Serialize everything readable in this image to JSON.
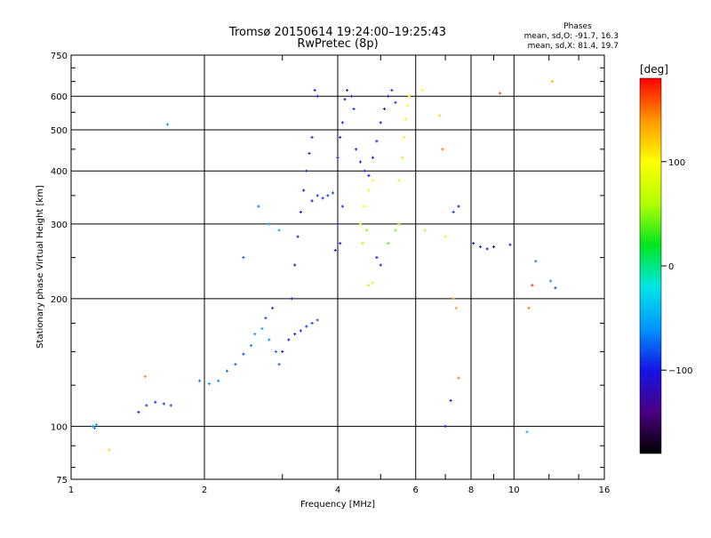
{
  "title_line1": "Tromsø 20150614 19:24:00–19:25:43",
  "title_line2": "RwPretec (8p)",
  "stats": {
    "heading": "Phases",
    "line_o": "mean, sd,O: -91.7, 16.3",
    "line_x": "mean, sd,X: 81.4, 19.7"
  },
  "colorbar": {
    "label": "[deg]",
    "ticks": [
      {
        "value": 100,
        "label": "100"
      },
      {
        "value": 0,
        "label": "0"
      },
      {
        "value": -100,
        "label": "−100"
      }
    ],
    "range": [
      -180,
      180
    ],
    "stops": [
      "#000000",
      "#4b0082",
      "#1414e6",
      "#0096ff",
      "#00e6e6",
      "#00e61e",
      "#b4ff00",
      "#ffff00",
      "#ff9600",
      "#ff0000"
    ]
  },
  "chart_data": {
    "type": "scatter",
    "title": "Tromsø 20150614 19:24:00–19:25:43",
    "subtitle": "RwPretec (8p)",
    "xlabel": "Frequency [MHz]",
    "ylabel": "Stationary phase Virtual Height [km]",
    "x_scale": "log",
    "y_scale": "log",
    "xlim": [
      1,
      16
    ],
    "ylim": [
      75,
      750
    ],
    "x_ticks": [
      {
        "value": 1,
        "label": "1"
      },
      {
        "value": 2,
        "label": "2"
      },
      {
        "value": 4,
        "label": "4"
      },
      {
        "value": 6,
        "label": "6"
      },
      {
        "value": 8,
        "label": "8"
      },
      {
        "value": 10,
        "label": "10"
      },
      {
        "value": 16,
        "label": "16"
      }
    ],
    "y_ticks": [
      {
        "value": 75,
        "label": "75"
      },
      {
        "value": 100,
        "label": "100"
      },
      {
        "value": 200,
        "label": "200"
      },
      {
        "value": 300,
        "label": "300"
      },
      {
        "value": 400,
        "label": "400"
      },
      {
        "value": 500,
        "label": "500"
      },
      {
        "value": 600,
        "label": "600"
      },
      {
        "value": 750,
        "label": "750"
      }
    ],
    "grid": true,
    "points": [
      {
        "x": 1.12,
        "y": 100,
        "p": -60
      },
      {
        "x": 1.14,
        "y": 101,
        "p": -55
      },
      {
        "x": 1.13,
        "y": 99,
        "p": -65
      },
      {
        "x": 1.22,
        "y": 88,
        "p": 120
      },
      {
        "x": 1.42,
        "y": 108,
        "p": -95
      },
      {
        "x": 1.48,
        "y": 112,
        "p": -90
      },
      {
        "x": 1.55,
        "y": 114,
        "p": -92
      },
      {
        "x": 1.62,
        "y": 113,
        "p": -88
      },
      {
        "x": 1.68,
        "y": 112,
        "p": -85
      },
      {
        "x": 1.47,
        "y": 131,
        "p": 140
      },
      {
        "x": 1.65,
        "y": 515,
        "p": -60
      },
      {
        "x": 1.95,
        "y": 128,
        "p": -70
      },
      {
        "x": 2.05,
        "y": 126,
        "p": -60
      },
      {
        "x": 2.15,
        "y": 128,
        "p": -65
      },
      {
        "x": 2.25,
        "y": 135,
        "p": -75
      },
      {
        "x": 2.35,
        "y": 140,
        "p": -80
      },
      {
        "x": 2.45,
        "y": 148,
        "p": -85
      },
      {
        "x": 2.55,
        "y": 155,
        "p": -70
      },
      {
        "x": 2.6,
        "y": 165,
        "p": -60
      },
      {
        "x": 2.7,
        "y": 170,
        "p": -55
      },
      {
        "x": 2.8,
        "y": 160,
        "p": -65
      },
      {
        "x": 2.9,
        "y": 150,
        "p": -75
      },
      {
        "x": 2.95,
        "y": 140,
        "p": -80
      },
      {
        "x": 2.75,
        "y": 180,
        "p": -85
      },
      {
        "x": 2.85,
        "y": 190,
        "p": -90
      },
      {
        "x": 2.45,
        "y": 250,
        "p": -80
      },
      {
        "x": 2.65,
        "y": 330,
        "p": -70
      },
      {
        "x": 2.8,
        "y": 300,
        "p": -60
      },
      {
        "x": 2.95,
        "y": 290,
        "p": -50
      },
      {
        "x": 3.0,
        "y": 150,
        "p": -110
      },
      {
        "x": 3.1,
        "y": 160,
        "p": -105
      },
      {
        "x": 3.2,
        "y": 165,
        "p": -100
      },
      {
        "x": 3.3,
        "y": 168,
        "p": -95
      },
      {
        "x": 3.4,
        "y": 172,
        "p": -90
      },
      {
        "x": 3.5,
        "y": 175,
        "p": -85
      },
      {
        "x": 3.6,
        "y": 178,
        "p": -80
      },
      {
        "x": 3.15,
        "y": 200,
        "p": -110
      },
      {
        "x": 3.2,
        "y": 240,
        "p": -110
      },
      {
        "x": 3.25,
        "y": 280,
        "p": -105
      },
      {
        "x": 3.3,
        "y": 320,
        "p": -100
      },
      {
        "x": 3.35,
        "y": 360,
        "p": -100
      },
      {
        "x": 3.4,
        "y": 400,
        "p": -95
      },
      {
        "x": 3.45,
        "y": 440,
        "p": -95
      },
      {
        "x": 3.5,
        "y": 480,
        "p": -95
      },
      {
        "x": 3.5,
        "y": 340,
        "p": -100
      },
      {
        "x": 3.6,
        "y": 350,
        "p": -95
      },
      {
        "x": 3.7,
        "y": 345,
        "p": -95
      },
      {
        "x": 3.8,
        "y": 350,
        "p": -90
      },
      {
        "x": 3.9,
        "y": 355,
        "p": -90
      },
      {
        "x": 3.55,
        "y": 620,
        "p": -105
      },
      {
        "x": 3.6,
        "y": 600,
        "p": -100
      },
      {
        "x": 3.95,
        "y": 260,
        "p": -110
      },
      {
        "x": 4.0,
        "y": 300,
        "p": -105
      },
      {
        "x": 4.05,
        "y": 270,
        "p": -100
      },
      {
        "x": 4.1,
        "y": 330,
        "p": -95
      },
      {
        "x": 4.0,
        "y": 430,
        "p": -100
      },
      {
        "x": 4.05,
        "y": 480,
        "p": -100
      },
      {
        "x": 4.1,
        "y": 520,
        "p": -100
      },
      {
        "x": 4.15,
        "y": 590,
        "p": -100
      },
      {
        "x": 4.2,
        "y": 620,
        "p": -95
      },
      {
        "x": 4.3,
        "y": 600,
        "p": -95
      },
      {
        "x": 4.35,
        "y": 560,
        "p": -90
      },
      {
        "x": 4.4,
        "y": 450,
        "p": -100
      },
      {
        "x": 4.5,
        "y": 420,
        "p": -95
      },
      {
        "x": 4.6,
        "y": 400,
        "p": -95
      },
      {
        "x": 4.7,
        "y": 390,
        "p": -100
      },
      {
        "x": 4.8,
        "y": 430,
        "p": -100
      },
      {
        "x": 4.9,
        "y": 470,
        "p": -100
      },
      {
        "x": 5.0,
        "y": 520,
        "p": -100
      },
      {
        "x": 5.1,
        "y": 560,
        "p": -100
      },
      {
        "x": 5.2,
        "y": 600,
        "p": -100
      },
      {
        "x": 5.3,
        "y": 620,
        "p": -95
      },
      {
        "x": 5.4,
        "y": 580,
        "p": -95
      },
      {
        "x": 4.9,
        "y": 250,
        "p": -100
      },
      {
        "x": 5.0,
        "y": 240,
        "p": -95
      },
      {
        "x": 4.5,
        "y": 300,
        "p": 80
      },
      {
        "x": 4.6,
        "y": 330,
        "p": 90
      },
      {
        "x": 4.7,
        "y": 360,
        "p": 95
      },
      {
        "x": 4.8,
        "y": 380,
        "p": 100
      },
      {
        "x": 4.55,
        "y": 270,
        "p": 60
      },
      {
        "x": 4.65,
        "y": 290,
        "p": 50
      },
      {
        "x": 4.7,
        "y": 215,
        "p": 110
      },
      {
        "x": 4.8,
        "y": 218,
        "p": 105
      },
      {
        "x": 5.2,
        "y": 270,
        "p": 40
      },
      {
        "x": 5.4,
        "y": 290,
        "p": 45
      },
      {
        "x": 5.5,
        "y": 300,
        "p": 55
      },
      {
        "x": 5.5,
        "y": 380,
        "p": 110
      },
      {
        "x": 5.6,
        "y": 430,
        "p": 115
      },
      {
        "x": 5.65,
        "y": 480,
        "p": 110
      },
      {
        "x": 5.7,
        "y": 530,
        "p": 105
      },
      {
        "x": 5.75,
        "y": 570,
        "p": 100
      },
      {
        "x": 5.8,
        "y": 600,
        "p": 100
      },
      {
        "x": 6.2,
        "y": 620,
        "p": 100
      },
      {
        "x": 6.3,
        "y": 290,
        "p": 60
      },
      {
        "x": 6.8,
        "y": 540,
        "p": 120
      },
      {
        "x": 6.9,
        "y": 450,
        "p": 150
      },
      {
        "x": 7.0,
        "y": 280,
        "p": 70
      },
      {
        "x": 7.2,
        "y": 115,
        "p": -110
      },
      {
        "x": 7.3,
        "y": 200,
        "p": 140
      },
      {
        "x": 7.4,
        "y": 190,
        "p": 140
      },
      {
        "x": 7.5,
        "y": 130,
        "p": 150
      },
      {
        "x": 7.3,
        "y": 320,
        "p": -90
      },
      {
        "x": 7.5,
        "y": 330,
        "p": -100
      },
      {
        "x": 8.1,
        "y": 270,
        "p": -100
      },
      {
        "x": 8.4,
        "y": 265,
        "p": -95
      },
      {
        "x": 8.7,
        "y": 262,
        "p": -100
      },
      {
        "x": 9.0,
        "y": 265,
        "p": -105
      },
      {
        "x": 9.3,
        "y": 610,
        "p": 160
      },
      {
        "x": 9.8,
        "y": 268,
        "p": -100
      },
      {
        "x": 10.8,
        "y": 190,
        "p": 150
      },
      {
        "x": 11.0,
        "y": 215,
        "p": 170
      },
      {
        "x": 11.2,
        "y": 245,
        "p": -70
      },
      {
        "x": 12.4,
        "y": 212,
        "p": -85
      },
      {
        "x": 12.1,
        "y": 220,
        "p": -60
      },
      {
        "x": 12.2,
        "y": 650,
        "p": 130
      },
      {
        "x": 10.7,
        "y": 97,
        "p": -40
      },
      {
        "x": 7.0,
        "y": 100,
        "p": -110
      }
    ]
  }
}
